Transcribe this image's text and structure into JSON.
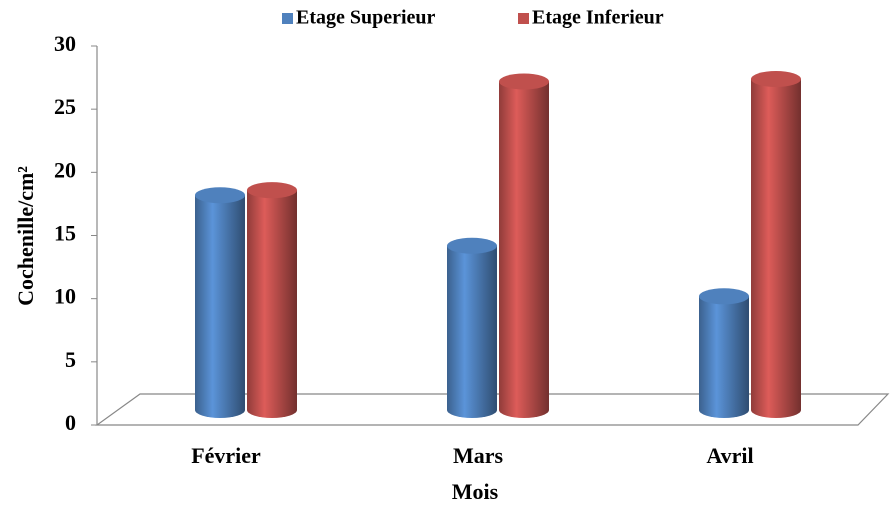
{
  "chart_data": {
    "type": "bar3d",
    "categories": [
      "Février",
      "Mars",
      "Avril"
    ],
    "series": [
      {
        "name": "Etage Superieur",
        "color": "#4f81bd",
        "values": [
          17,
          13,
          9
        ]
      },
      {
        "name": "Etage Inferieur",
        "color": "#c0504d",
        "values": [
          17.4,
          26,
          26.2
        ]
      }
    ],
    "x_label": "Mois",
    "y_label": "Cochenille/cm²",
    "ylim": [
      0,
      30
    ],
    "yticks": [
      0,
      5,
      10,
      15,
      20,
      25,
      30
    ],
    "legend": "top"
  }
}
